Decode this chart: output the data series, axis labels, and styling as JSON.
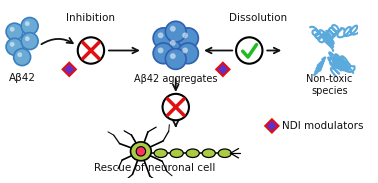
{
  "bg_color": "#ffffff",
  "light_blue": "#6aaad4",
  "mid_blue": "#5090cc",
  "dark_blue": "#3060b0",
  "red": "#e01010",
  "green": "#22bb22",
  "purple_diamond": "#6030cc",
  "red_diamond_border": "#e01010",
  "neuron_body": "#aacc44",
  "neuron_nucleus": "#ff3366",
  "nontoxic_blue": "#5aaadd",
  "arrow_color": "#111111",
  "text_color": "#111111",
  "labels": {
    "abeta42": "Aβ42",
    "aggregates": "Aβ42 aggregates",
    "nontoxic": "Non-toxic\nspecies",
    "rescue": "Rescue of neuronal cell",
    "inhibition": "Inhibition",
    "dissolution": "Dissolution",
    "ndi": "NDI modulators"
  }
}
